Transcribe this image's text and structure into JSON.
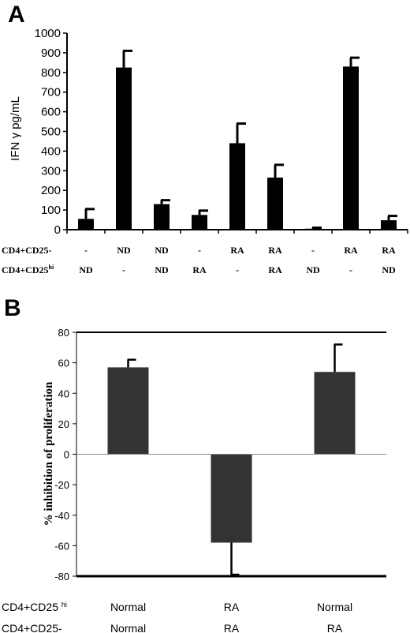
{
  "panel_a": {
    "letter": "A",
    "row_labels": [
      {
        "main": "CD4+CD25-",
        "sup": ""
      },
      {
        "main": "CD4+CD25",
        "sup": "hi"
      }
    ]
  },
  "panel_b": {
    "letter": "B",
    "row_labels": [
      {
        "main": "CD4+CD25 ",
        "sup": "hi"
      },
      {
        "main": "CD4+CD25-",
        "sup": ""
      }
    ]
  },
  "chart_data": [
    {
      "type": "bar",
      "ylabel": "IFN γ pg/mL",
      "ylim": [
        0,
        1000
      ],
      "yticks": [
        0,
        100,
        200,
        300,
        400,
        500,
        600,
        700,
        800,
        900,
        1000
      ],
      "grid": false,
      "categories_row1": [
        "-",
        "ND",
        "ND",
        "-",
        "RA",
        "RA",
        "-",
        "RA",
        "RA"
      ],
      "categories_row2": [
        "ND",
        "-",
        "ND",
        "RA",
        "-",
        "RA",
        "ND",
        "-",
        "ND"
      ],
      "values": [
        55,
        825,
        130,
        75,
        440,
        265,
        5,
        830,
        48
      ],
      "errors": [
        50,
        85,
        20,
        22,
        100,
        65,
        5,
        45,
        22
      ],
      "bar_color": "#000000"
    },
    {
      "type": "bar",
      "ylabel": "% inhibition of proliferation",
      "ylim": [
        -80,
        80
      ],
      "yticks": [
        -80,
        -60,
        -40,
        -20,
        0,
        20,
        40,
        60,
        80
      ],
      "grid": false,
      "categories_row1": [
        "Normal",
        "RA",
        "Normal"
      ],
      "categories_row2": [
        "Normal",
        "RA",
        "RA"
      ],
      "values": [
        57,
        -58,
        54
      ],
      "errors": [
        5,
        21,
        18
      ],
      "bar_color": "#333333"
    }
  ]
}
